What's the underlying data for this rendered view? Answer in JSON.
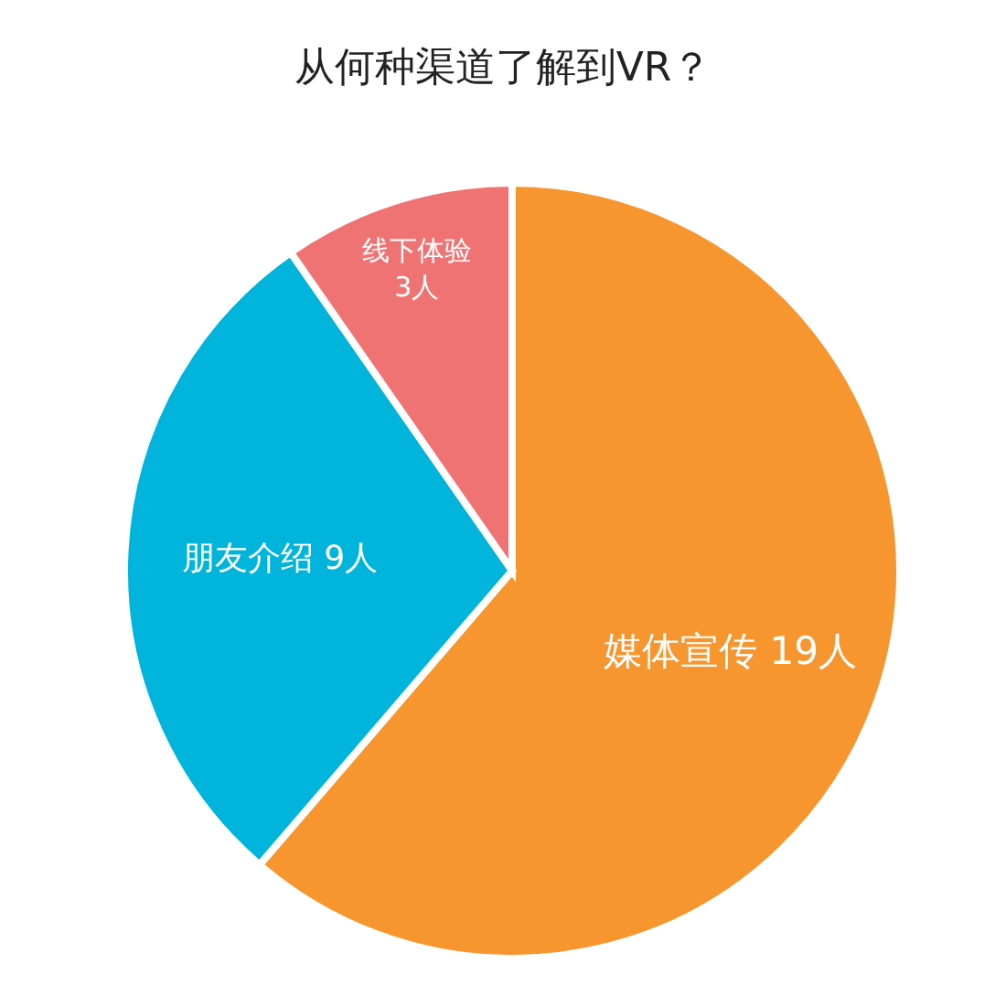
{
  "chart_data": {
    "type": "pie",
    "title": "从何种渠道了解到VR？",
    "categories": [
      "媒体宣传",
      "朋友介绍",
      "线下体验"
    ],
    "values": [
      19,
      9,
      3
    ],
    "value_labels": [
      "19人",
      "9人",
      "3人"
    ],
    "colors": [
      "#f7952f",
      "#00b4dc",
      "#f07373"
    ],
    "legend": false
  }
}
